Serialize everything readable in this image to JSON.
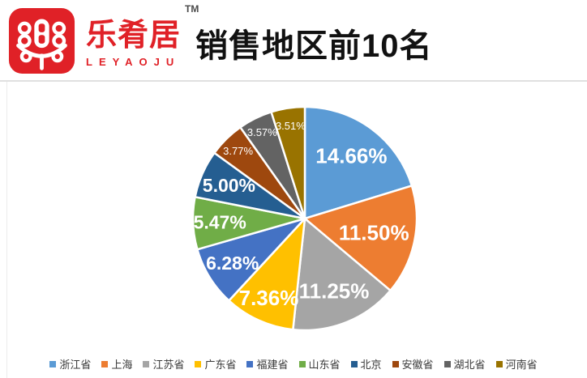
{
  "header": {
    "logo": {
      "brand_cn": "乐肴居",
      "brand_en": "LEYAOJU",
      "trademark": "TM",
      "brand_color": "#E02127"
    },
    "title": "销售地区前10名"
  },
  "chart_data": {
    "type": "pie",
    "title": "销售地区前10名",
    "start_angle_deg": 0,
    "direction": "clockwise",
    "legend_position": "bottom",
    "slice_border_color": "#ffffff",
    "label_color": "#ffffff",
    "series": [
      {
        "name": "浙江省",
        "value": 14.66,
        "label": "14.66%",
        "color": "#5B9BD5",
        "label_r": 0.7,
        "label_size": 26
      },
      {
        "name": "上海",
        "value": 11.5,
        "label": "11.50%",
        "color": "#ED7D31",
        "label_r": 0.63,
        "label_size": 26
      },
      {
        "name": "江苏省",
        "value": 11.25,
        "label": "11.25%",
        "color": "#A5A5A5",
        "label_r": 0.7,
        "label_size": 26
      },
      {
        "name": "广东省",
        "value": 7.36,
        "label": "7.36%",
        "color": "#FFC000",
        "label_r": 0.78,
        "label_size": 26
      },
      {
        "name": "福建省",
        "value": 6.28,
        "label": "6.28%",
        "color": "#4472C4",
        "label_r": 0.76,
        "label_size": 23
      },
      {
        "name": "山东省",
        "value": 5.47,
        "label": "5.47%",
        "color": "#70AD47",
        "label_r": 0.76,
        "label_size": 23
      },
      {
        "name": "北京",
        "value": 5.0,
        "label": "5.00%",
        "color": "#255E91",
        "label_r": 0.74,
        "label_size": 23
      },
      {
        "name": "安徽省",
        "value": 3.77,
        "label": "3.77%",
        "color": "#9E480E",
        "label_r": 0.85,
        "label_size": 13
      },
      {
        "name": "湖北省",
        "value": 3.57,
        "label": "3.57%",
        "color": "#636363",
        "label_r": 0.86,
        "label_size": 13
      },
      {
        "name": "河南省",
        "value": 3.51,
        "label": "3.51%",
        "color": "#997300",
        "label_r": 0.84,
        "label_size": 13
      }
    ]
  }
}
